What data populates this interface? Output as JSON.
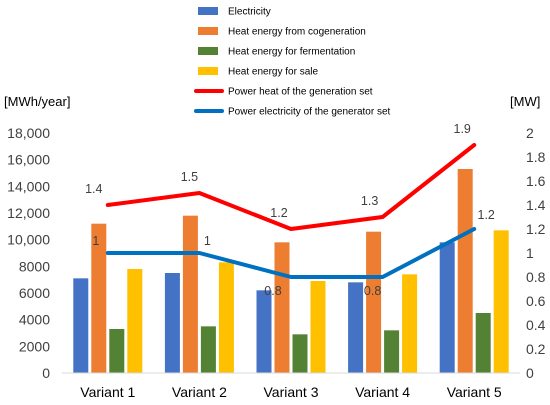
{
  "chart_data": {
    "type": "bar",
    "categories": [
      "Variant 1",
      "Variant 2",
      "Variant 3",
      "Variant 4",
      "Variant 5"
    ],
    "left_axis": {
      "unit_label": "[MWh/year]",
      "ylim": [
        0,
        18000
      ],
      "ticks": [
        "0",
        "2000",
        "4000",
        "6000",
        "8000",
        "10,000",
        "12,000",
        "14,000",
        "16,000",
        "18,000"
      ]
    },
    "right_axis": {
      "unit_label": "[MW]",
      "ylim": [
        0,
        2
      ],
      "ticks": [
        "0",
        "0.2",
        "0.4",
        "0.6",
        "0.8",
        "1",
        "1.2",
        "1.4",
        "1.6",
        "1.8",
        "2"
      ]
    },
    "bar_series": [
      {
        "name": "Electricity",
        "color": "#4472C4",
        "values": [
          7100,
          7500,
          6200,
          6800,
          9800
        ]
      },
      {
        "name": "Heat energy from cogeneration",
        "color": "#ED7D31",
        "values": [
          11200,
          11800,
          9800,
          10600,
          15300
        ]
      },
      {
        "name": "Heat energy for fermentation",
        "color": "#548235",
        "values": [
          3300,
          3500,
          2900,
          3200,
          4500
        ]
      },
      {
        "name": "Heat energy for sale",
        "color": "#FFC000",
        "values": [
          7800,
          8300,
          6900,
          7400,
          10700
        ]
      }
    ],
    "line_series": [
      {
        "name": "Power heat of the generation set",
        "color": "#FF0000",
        "axis": "right",
        "values": [
          1.4,
          1.5,
          1.2,
          1.3,
          1.9
        ],
        "labels": [
          "1.4",
          "1.5",
          "1.2",
          "1.3",
          "1.9"
        ]
      },
      {
        "name": "Power electricity of the generator set",
        "color": "#0070C0",
        "axis": "right",
        "values": [
          1.0,
          1.0,
          0.8,
          0.8,
          1.2
        ],
        "labels": [
          "1",
          "1",
          "0.8",
          "0.8",
          "1.2"
        ]
      }
    ],
    "grid": false,
    "legend_position": "top"
  }
}
